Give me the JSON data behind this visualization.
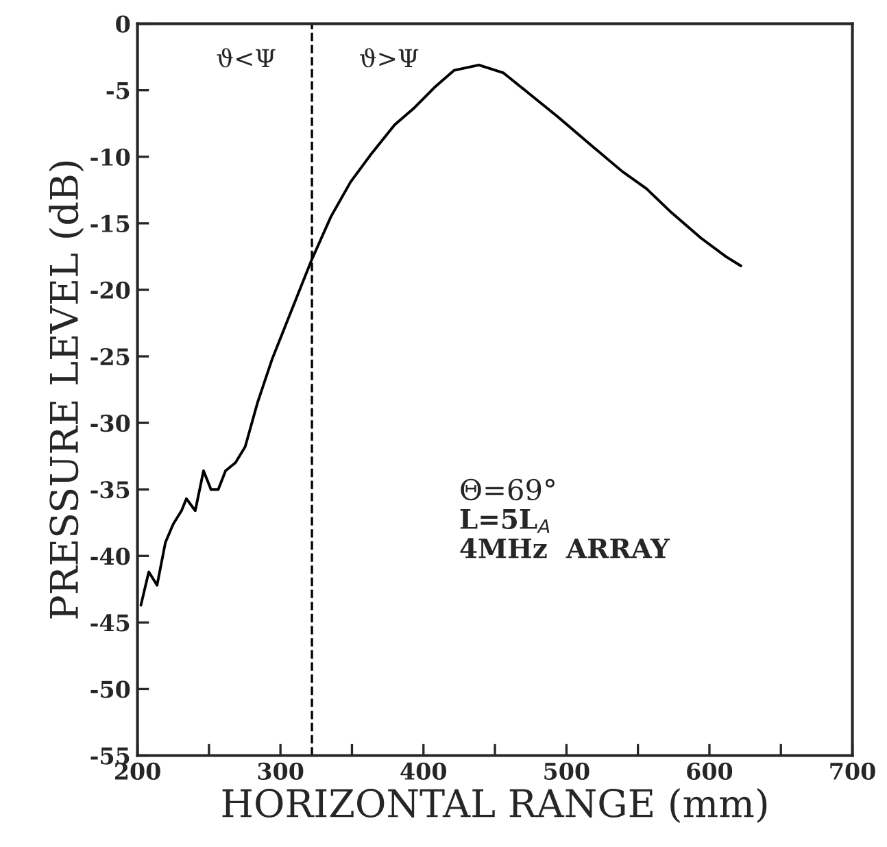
{
  "chart_data": {
    "type": "line",
    "xlabel": "HORIZONTAL RANGE (mm)",
    "ylabel": "PRESSURE LEVEL (dB)",
    "series": [
      {
        "color": "#000000",
        "x": [
          202.4,
          207.9,
          213.7,
          219.5,
          225,
          230.8,
          234.2,
          240.4,
          246.2,
          251.4,
          256.5,
          261.6,
          268.5,
          275.3,
          283.9,
          294.2,
          307.9,
          321.6,
          335.3,
          349,
          362.7,
          379.8,
          393.8,
          407.6,
          421.5,
          438.8,
          456,
          476.8,
          494,
          518,
          539,
          556,
          573.5,
          594,
          611.5,
          622
        ],
        "values": [
          -43.7,
          -41.2,
          -42.2,
          -39.0,
          -37.6,
          -36.6,
          -35.7,
          -36.6,
          -33.6,
          -35.0,
          -35.0,
          -33.6,
          -33.0,
          -31.8,
          -28.5,
          -25.2,
          -21.5,
          -17.8,
          -14.5,
          -11.9,
          -9.9,
          -7.6,
          -6.3,
          -4.8,
          -3.5,
          -3.1,
          -3.7,
          -5.5,
          -7.0,
          -9.2,
          -11.1,
          -12.4,
          -14.2,
          -16.1,
          -17.5,
          -18.2
        ]
      }
    ],
    "xlim": [
      200,
      700
    ],
    "ylim": [
      -55,
      0
    ],
    "xticks": [
      200,
      {
        "value": 250,
        "label": null
      },
      300,
      {
        "value": 350,
        "label": null
      },
      400,
      {
        "value": 450,
        "label": null
      },
      500,
      {
        "value": 550,
        "label": null
      },
      600,
      {
        "value": 650,
        "label": null
      },
      700
    ],
    "yticks": [
      0,
      -5,
      -10,
      -15,
      -20,
      -25,
      -30,
      -35,
      -40,
      -45,
      -50,
      -55
    ],
    "ref_lines": [
      {
        "axis": "x",
        "value": 322,
        "color": "#000000",
        "line_style": "dashed"
      }
    ],
    "annotations": [
      "ϑ<Ψ",
      "ϑ>Ψ",
      "Θ=69°",
      "L=5L$_{A}$",
      "4MHz  ARRAY"
    ],
    "grid": false,
    "legend": false,
    "marker": "none",
    "line_style": "solid"
  }
}
